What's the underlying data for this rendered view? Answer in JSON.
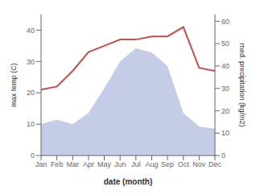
{
  "chart_data": {
    "type": "line",
    "xlabel": "date (month)",
    "ylabel": "max temp (C)",
    "y2label": "med. precipitation (kg/m2)",
    "categories": [
      "Jan",
      "Feb",
      "Mar",
      "Apr",
      "May",
      "Jun",
      "Jul",
      "Aug",
      "Sep",
      "Oct",
      "Nov",
      "Dec"
    ],
    "series": [
      {
        "name": "med. precipitation (kg/m2)",
        "type": "area",
        "axis": "y2",
        "color": "#c5cce8",
        "values": [
          14,
          16,
          14,
          19,
          30,
          42,
          48,
          46,
          40,
          19,
          13,
          12
        ]
      },
      {
        "name": "max temp (C)",
        "type": "line",
        "color": "#c0504d",
        "values": [
          21,
          22,
          27,
          33,
          35,
          37,
          37,
          38,
          38,
          41,
          28,
          27
        ]
      }
    ],
    "ylim": [
      0,
      45
    ],
    "yticks": [
      0,
      10,
      20,
      30,
      40
    ],
    "y2lim": [
      0,
      63
    ],
    "y2ticks": [
      0,
      10,
      20,
      30,
      40,
      50,
      60
    ],
    "grid": false
  }
}
